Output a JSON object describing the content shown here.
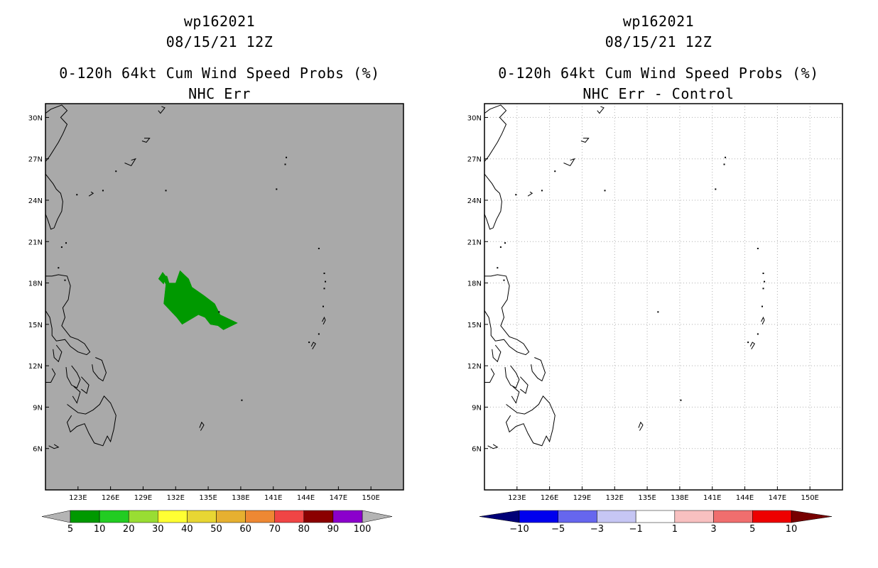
{
  "left": {
    "storm": "wp162021",
    "datetime": "08/15/21 12Z",
    "product": "0-120h 64kt Cum Wind Speed Probs (%)",
    "subtitle": "NHC Err",
    "background_color": "#a9a9a9",
    "colorbar": {
      "labels": [
        "5",
        "10",
        "20",
        "30",
        "40",
        "50",
        "60",
        "70",
        "80",
        "90",
        "100"
      ],
      "colors": [
        "#009900",
        "#22cc22",
        "#99dd33",
        "#ffff33",
        "#e8d633",
        "#e6b030",
        "#ee8833",
        "#f04545",
        "#8b0000",
        "#8b00cc"
      ],
      "extension_color": "#b4b4b4"
    }
  },
  "right": {
    "storm": "wp162021",
    "datetime": "08/15/21 12Z",
    "product": "0-120h 64kt Cum Wind Speed Probs (%)",
    "subtitle": "NHC Err - Control",
    "background_color": "#ffffff",
    "colorbar": {
      "labels": [
        "-10",
        "-5",
        "-3",
        "-1",
        "1",
        "3",
        "5",
        "10"
      ],
      "colors": [
        "#0000ee",
        "#6666ee",
        "#c6c6f4",
        "#ffffff",
        "#f8c0c0",
        "#f06e6e",
        "#ee0000"
      ],
      "extension_low": "#000077",
      "extension_high": "#770000"
    }
  },
  "map": {
    "lon_labels": [
      "123E",
      "126E",
      "129E",
      "132E",
      "135E",
      "138E",
      "141E",
      "144E",
      "147E",
      "150E"
    ],
    "lat_labels": [
      "30N",
      "27N",
      "24N",
      "21N",
      "18N",
      "15N",
      "12N",
      "9N",
      "6N"
    ],
    "lon_range": [
      120.0,
      153.0
    ],
    "lat_range": [
      3.0,
      31.0
    ],
    "probability_region": {
      "category": "5-10",
      "color": "#009900",
      "polygon_lonlat": [
        [
          130.7,
          18.5
        ],
        [
          131.2,
          18.5
        ],
        [
          131.4,
          18.0
        ],
        [
          132.0,
          18.0
        ],
        [
          132.4,
          18.9
        ],
        [
          133.2,
          18.3
        ],
        [
          133.5,
          17.7
        ],
        [
          134.6,
          17.1
        ],
        [
          135.6,
          16.5
        ],
        [
          136.1,
          15.7
        ],
        [
          137.7,
          15.1
        ],
        [
          136.4,
          14.6
        ],
        [
          135.9,
          14.9
        ],
        [
          135.2,
          15.0
        ],
        [
          134.7,
          15.5
        ],
        [
          134.1,
          15.7
        ],
        [
          132.6,
          15.0
        ],
        [
          132.1,
          15.5
        ],
        [
          131.5,
          16.0
        ],
        [
          130.9,
          16.5
        ],
        [
          131.1,
          17.9
        ]
      ]
    }
  }
}
